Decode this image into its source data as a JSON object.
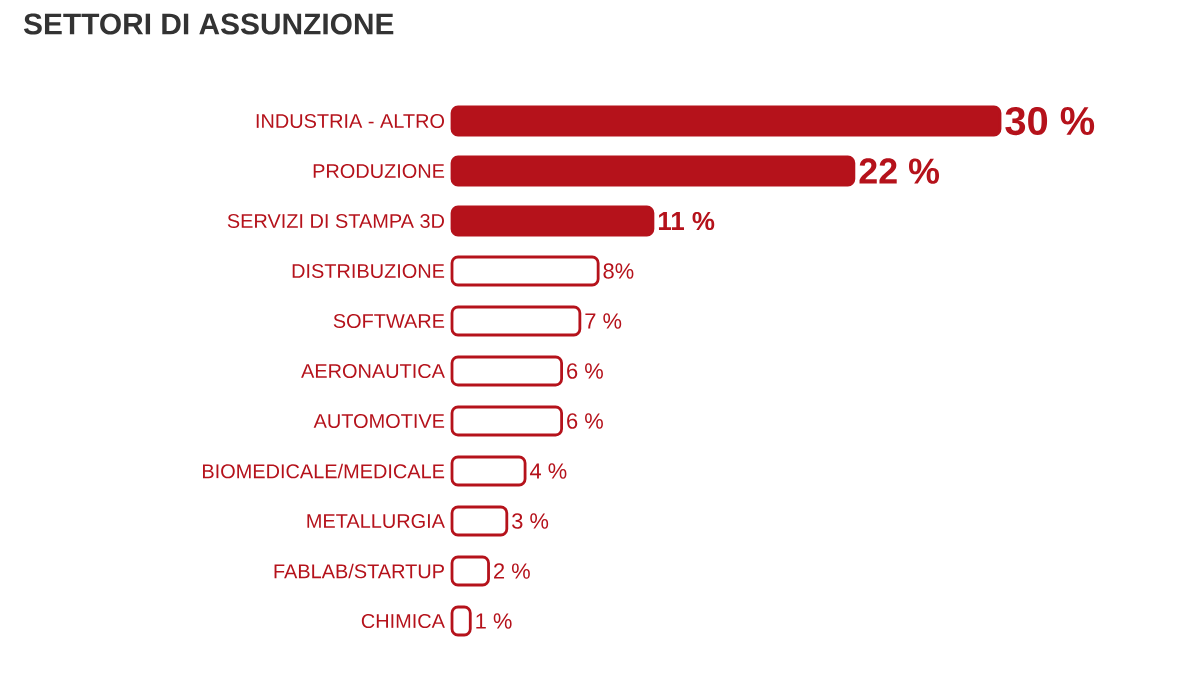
{
  "chart_data": {
    "type": "bar",
    "orientation": "horizontal",
    "title": "SETTORI DI ASSUNZIONE",
    "categories": [
      "INDUSTRIA - ALTRO",
      "PRODUZIONE",
      "SERVIZI DI STAMPA 3D",
      "DISTRIBUZIONE",
      "SOFTWARE",
      "AERONAUTICA",
      "AUTOMOTIVE",
      "BIOMEDICALE/MEDICALE",
      "METALLURGIA",
      "FABLAB/STARTUP",
      "CHIMICA"
    ],
    "values": [
      30,
      22,
      11,
      8,
      7,
      6,
      6,
      4,
      3,
      2,
      1
    ],
    "value_labels": [
      "30 %",
      "22 %",
      "11 %",
      "8%",
      "7 %",
      "6 %",
      "6 %",
      "4 %",
      "3 %",
      "2 %",
      "1 %"
    ],
    "colors": [
      "#b5121b",
      "#b5121b",
      "#b5121b",
      "#ffffff",
      "#ffffff",
      "#ffffff",
      "#ffffff",
      "#ffffff",
      "#ffffff",
      "#ffffff",
      "#ffffff"
    ]
  }
}
